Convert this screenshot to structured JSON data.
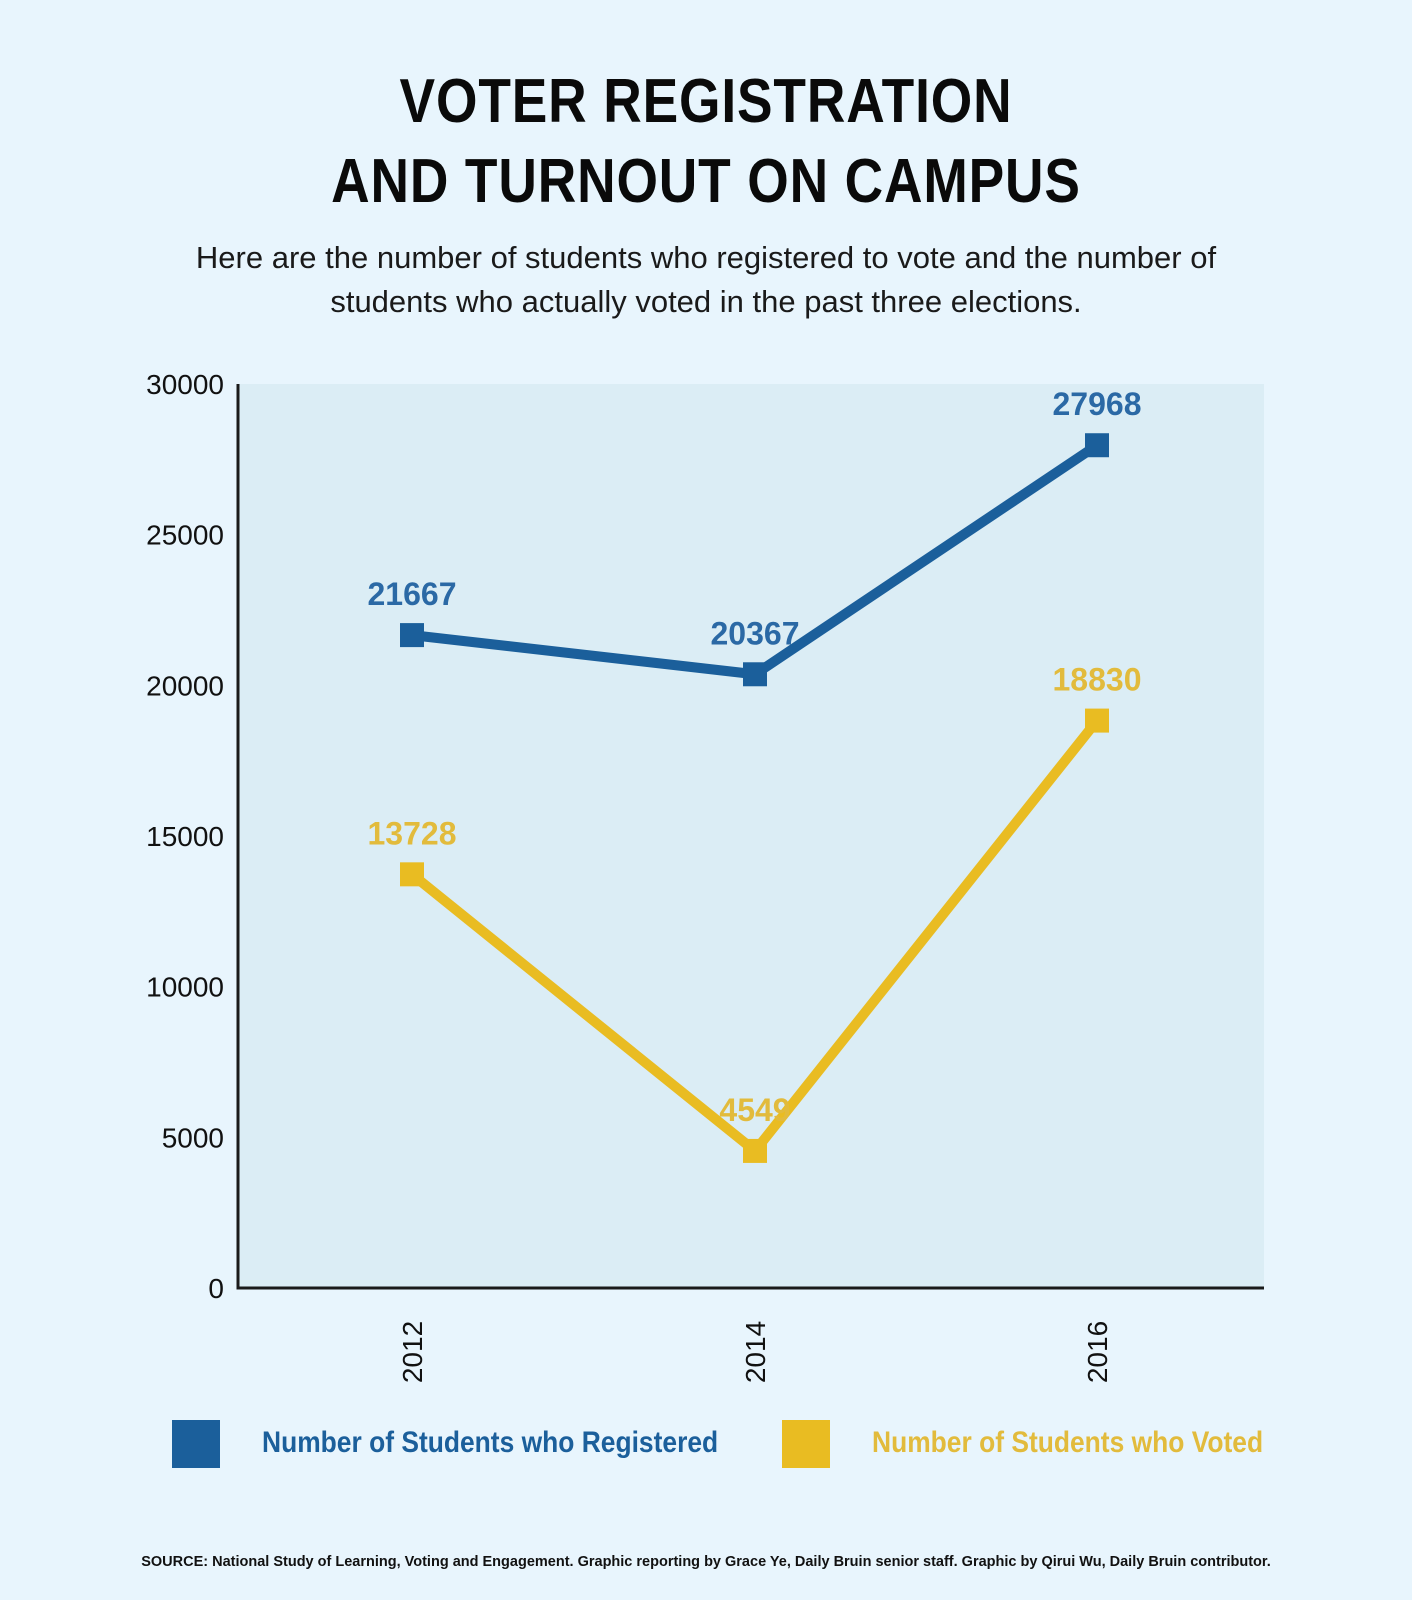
{
  "chart_data": {
    "type": "line",
    "title": "VOTER REGISTRATION AND TURNOUT ON CAMPUS",
    "title_lines": [
      "VOTER REGISTRATION",
      "AND TURNOUT ON CAMPUS"
    ],
    "subtitle_lines": [
      "Here are the number of students who registered to vote and the number of",
      "students who actually voted in the past three elections."
    ],
    "categories": [
      "2012",
      "2014",
      "2016"
    ],
    "series": [
      {
        "name": "Number of Students who Registered",
        "values": [
          21667,
          20367,
          27968
        ],
        "color": "#1b5f9b",
        "label_color": "#2b69a5"
      },
      {
        "name": "Number of Students who Voted",
        "values": [
          13728,
          4549,
          18830
        ],
        "color": "#e9bc22",
        "label_color": "#e2bb3c"
      }
    ],
    "ylim": [
      0,
      30000
    ],
    "yticks": [
      "0",
      "5000",
      "10000",
      "15000",
      "20000",
      "25000",
      "30000"
    ],
    "xlabel": "",
    "ylabel": "",
    "grid": false,
    "legend_position": "bottom",
    "plot_background": "#dbedf5",
    "source": "SOURCE: National Study of Learning, Voting and Engagement. Graphic reporting by Grace Ye, Daily Bruin senior staff. Graphic by Qirui Wu, Daily Bruin contributor."
  }
}
